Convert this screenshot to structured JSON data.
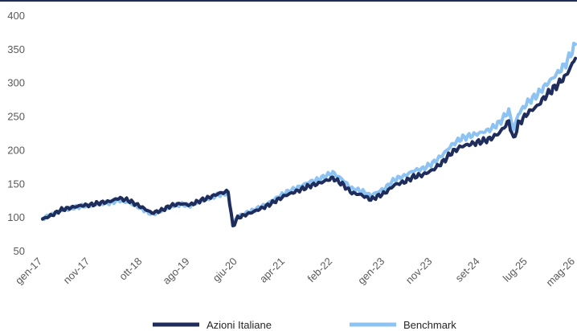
{
  "chart_data": {
    "type": "line",
    "title": "",
    "xlabel": "",
    "ylabel": "",
    "ylim": [
      50,
      400
    ],
    "yticks": [
      50,
      100,
      150,
      200,
      250,
      300,
      350,
      400
    ],
    "xticks": [
      "gen-17",
      "nov-17",
      "ott-18",
      "ago-19",
      "giu-20",
      "apr-21",
      "feb-22",
      "gen-23",
      "nov-23",
      "set-24",
      "lug-25",
      "mag-26"
    ],
    "grid": false,
    "legend_position": "bottom",
    "series": [
      {
        "name": "Azioni Italiane",
        "color": "#1f2d5c",
        "points": [
          [
            "gen-17",
            97
          ],
          [
            "mar-17",
            103
          ],
          [
            "mag-17",
            111
          ],
          [
            "lug-17",
            114
          ],
          [
            "set-17",
            117
          ],
          [
            "nov-17",
            118
          ],
          [
            "gen-18",
            121
          ],
          [
            "mar-18",
            123
          ],
          [
            "mag-18",
            128
          ],
          [
            "lug-18",
            125
          ],
          [
            "ott-18",
            114
          ],
          [
            "dic-18",
            106
          ],
          [
            "feb-19",
            110
          ],
          [
            "apr-19",
            117
          ],
          [
            "giu-19",
            120
          ],
          [
            "ago-19",
            118
          ],
          [
            "ott-19",
            124
          ],
          [
            "dic-19",
            129
          ],
          [
            "feb-20",
            135
          ],
          [
            "apr-20",
            138
          ],
          [
            "mag-20",
            86
          ],
          [
            "giu-20",
            99
          ],
          [
            "set-20",
            107
          ],
          [
            "dic-20",
            116
          ],
          [
            "apr-21",
            132
          ],
          [
            "lug-21",
            140
          ],
          [
            "set-21",
            146
          ],
          [
            "nov-21",
            150
          ],
          [
            "feb-22",
            158
          ],
          [
            "apr-22",
            149
          ],
          [
            "giu-22",
            136
          ],
          [
            "ago-22",
            133
          ],
          [
            "ott-22",
            126
          ],
          [
            "gen-23",
            136
          ],
          [
            "mar-23",
            148
          ],
          [
            "mag-23",
            152
          ],
          [
            "lug-23",
            160
          ],
          [
            "set-23",
            163
          ],
          [
            "nov-23",
            170
          ],
          [
            "gen-24",
            181
          ],
          [
            "mar-24",
            196
          ],
          [
            "mag-24",
            205
          ],
          [
            "set-24",
            212
          ],
          [
            "nov-24",
            216
          ],
          [
            "gen-25",
            225
          ],
          [
            "mar-25",
            242
          ],
          [
            "apr-25",
            215
          ],
          [
            "mag-25",
            238
          ],
          [
            "lug-25",
            255
          ],
          [
            "set-25",
            265
          ],
          [
            "nov-25",
            282
          ],
          [
            "gen-26",
            295
          ],
          [
            "mar-26",
            310
          ],
          [
            "mag-26",
            336
          ]
        ]
      },
      {
        "name": "Benchmark",
        "color": "#8cc3f2",
        "points": [
          [
            "gen-17",
            98
          ],
          [
            "mar-17",
            104
          ],
          [
            "mag-17",
            110
          ],
          [
            "lug-17",
            113
          ],
          [
            "set-17",
            116
          ],
          [
            "nov-17",
            117
          ],
          [
            "gen-18",
            120
          ],
          [
            "mar-18",
            121
          ],
          [
            "mag-18",
            125
          ],
          [
            "lug-18",
            122
          ],
          [
            "ott-18",
            112
          ],
          [
            "dic-18",
            104
          ],
          [
            "feb-19",
            109
          ],
          [
            "apr-19",
            116
          ],
          [
            "giu-19",
            119
          ],
          [
            "ago-19",
            117
          ],
          [
            "ott-19",
            123
          ],
          [
            "dic-19",
            128
          ],
          [
            "feb-20",
            133
          ],
          [
            "apr-20",
            136
          ],
          [
            "mag-20",
            90
          ],
          [
            "giu-20",
            101
          ],
          [
            "set-20",
            109
          ],
          [
            "dic-20",
            119
          ],
          [
            "apr-21",
            136
          ],
          [
            "lug-21",
            145
          ],
          [
            "set-21",
            152
          ],
          [
            "nov-21",
            156
          ],
          [
            "feb-22",
            166
          ],
          [
            "apr-22",
            156
          ],
          [
            "giu-22",
            142
          ],
          [
            "ago-22",
            139
          ],
          [
            "ott-22",
            132
          ],
          [
            "gen-23",
            143
          ],
          [
            "mar-23",
            156
          ],
          [
            "mag-23",
            161
          ],
          [
            "lug-23",
            169
          ],
          [
            "set-23",
            172
          ],
          [
            "nov-23",
            180
          ],
          [
            "gen-24",
            192
          ],
          [
            "mar-24",
            207
          ],
          [
            "mag-24",
            217
          ],
          [
            "set-24",
            225
          ],
          [
            "nov-24",
            230
          ],
          [
            "gen-25",
            240
          ],
          [
            "mar-25",
            258
          ],
          [
            "apr-25",
            230
          ],
          [
            "mag-25",
            253
          ],
          [
            "lug-25",
            271
          ],
          [
            "set-25",
            282
          ],
          [
            "nov-25",
            298
          ],
          [
            "gen-26",
            312
          ],
          [
            "mar-26",
            328
          ],
          [
            "mag-26",
            357
          ]
        ]
      }
    ]
  }
}
